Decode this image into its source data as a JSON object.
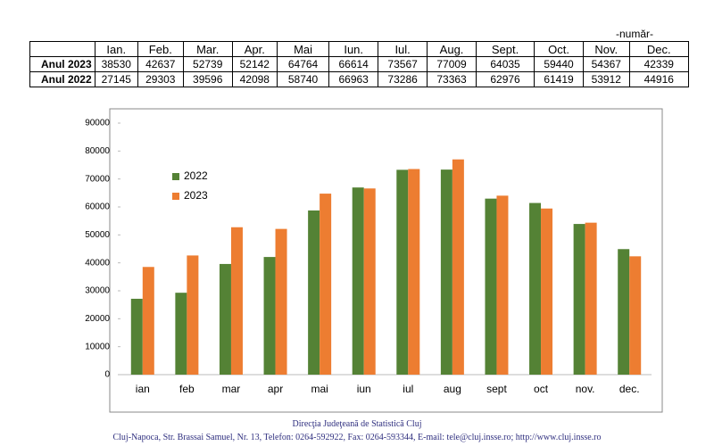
{
  "unit": "-număr-",
  "table": {
    "header": [
      "",
      "Ian.",
      "Feb.",
      "Mar.",
      "Apr.",
      "Mai",
      "Iun.",
      "Iul.",
      "Aug.",
      "Sept.",
      "Oct.",
      "Nov.",
      "Dec."
    ],
    "rows": [
      [
        "Anul 2023",
        38530,
        42637,
        52739,
        52142,
        64764,
        66614,
        73567,
        77009,
        64035,
        59440,
        54367,
        42339
      ],
      [
        "Anul 2022",
        27145,
        29303,
        39596,
        42098,
        58740,
        66963,
        73286,
        73363,
        62976,
        61419,
        53912,
        44916
      ]
    ]
  },
  "chart_data": {
    "type": "bar",
    "categories": [
      "ian",
      "feb",
      "mar",
      "apr",
      "mai",
      "iun",
      "iul",
      "aug",
      "sept",
      "oct",
      "nov.",
      "dec."
    ],
    "series": [
      {
        "name": "2022",
        "color": "#548235",
        "values": [
          27145,
          29303,
          39596,
          42098,
          58740,
          66963,
          73286,
          73363,
          62976,
          61419,
          53912,
          44916
        ]
      },
      {
        "name": "2023",
        "color": "#ed7d31",
        "values": [
          38530,
          42637,
          52739,
          52142,
          64764,
          66614,
          73567,
          77009,
          64035,
          59440,
          54367,
          42339
        ]
      }
    ],
    "ylim": [
      0,
      90000
    ],
    "yticks": [
      0,
      10000,
      20000,
      30000,
      40000,
      50000,
      60000,
      70000,
      80000,
      90000
    ],
    "legend": "upper left"
  },
  "footer": [
    "Direcţia Judeţeană de Statistică Cluj",
    "Cluj-Napoca, Str. Brassai Samuel, Nr. 13, Telefon: 0264-592922, Fax: 0264-593344, E-mail: tele@cluj.insse.ro; http://www.cluj.insse.ro"
  ]
}
